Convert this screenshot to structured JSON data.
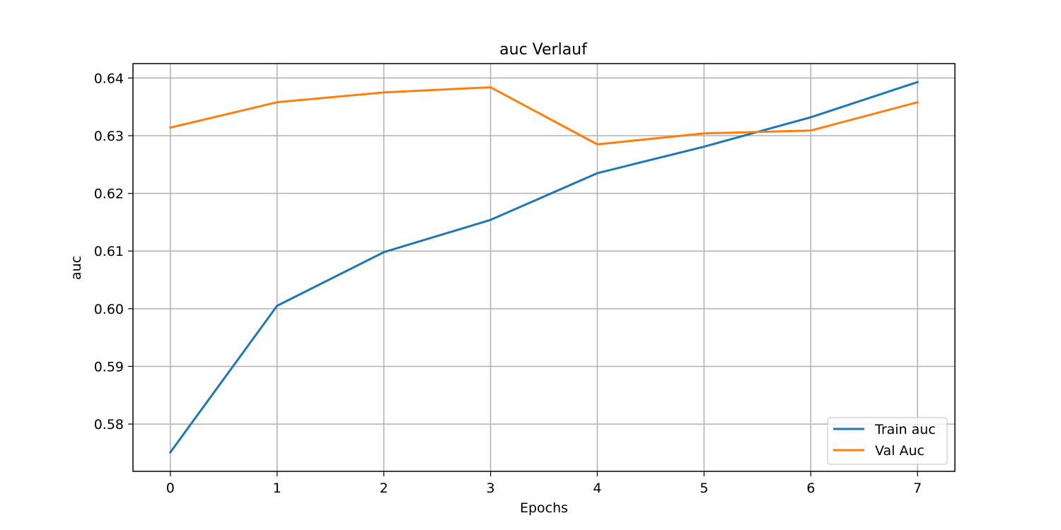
{
  "chart_data": {
    "type": "line",
    "title": "auc Verlauf",
    "xlabel": "Epochs",
    "ylabel": "auc",
    "x": [
      0,
      1,
      2,
      3,
      4,
      5,
      6,
      7
    ],
    "xlim": [
      -0.35,
      7.35
    ],
    "ylim": [
      0.5718,
      0.6425
    ],
    "xticks": [
      "0",
      "1",
      "2",
      "3",
      "4",
      "5",
      "6",
      "7"
    ],
    "yticks": [
      0.58,
      0.59,
      0.6,
      0.61,
      0.62,
      0.63,
      0.64
    ],
    "ytick_labels": [
      "0.58",
      "0.59",
      "0.60",
      "0.61",
      "0.62",
      "0.63",
      "0.64"
    ],
    "grid": true,
    "legend_position": "lower-right",
    "series": [
      {
        "name": "Train auc",
        "color": "#1f77b4",
        "values": [
          0.5751,
          0.6005,
          0.6098,
          0.6154,
          0.6235,
          0.6281,
          0.6332,
          0.6393
        ]
      },
      {
        "name": "Val Auc",
        "color": "#ff7f0e",
        "values": [
          0.6314,
          0.6358,
          0.6375,
          0.6384,
          0.6285,
          0.6304,
          0.6309,
          0.6358
        ]
      }
    ]
  }
}
